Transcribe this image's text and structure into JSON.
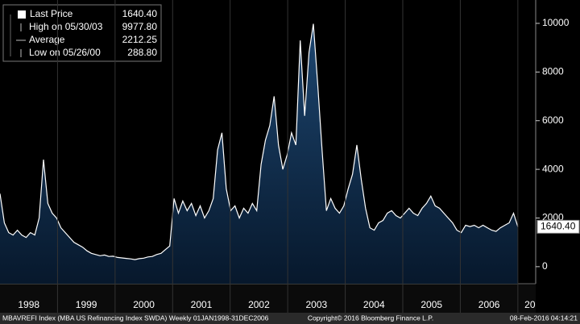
{
  "chart_data": {
    "type": "area",
    "stats": [
      {
        "label": "Last Price",
        "value": "1640.40"
      },
      {
        "label": "High on 05/30/03",
        "value": "9977.80"
      },
      {
        "label": "Average",
        "value": "2212.25"
      },
      {
        "label": "Low on 05/26/00",
        "value": "288.80"
      }
    ],
    "series": [
      {
        "name": "MBAVREFI Index",
        "color": "#ffffff",
        "fill": "#0d2b4c",
        "values": [
          3000,
          1800,
          1400,
          1300,
          1500,
          1300,
          1200,
          1400,
          1300,
          2000,
          4400,
          2600,
          2200,
          2000,
          1600,
          1400,
          1200,
          1000,
          900,
          800,
          650,
          550,
          500,
          450,
          480,
          420,
          430,
          380,
          360,
          340,
          320,
          289,
          330,
          350,
          400,
          420,
          500,
          550,
          700,
          850,
          2800,
          2200,
          2700,
          2300,
          2600,
          2100,
          2500,
          2000,
          2300,
          2800,
          4800,
          5500,
          3200,
          2300,
          2500,
          2000,
          2400,
          2200,
          2600,
          2300,
          4200,
          5200,
          5800,
          7000,
          5000,
          4000,
          4600,
          5500,
          5000,
          9300,
          6200,
          8800,
          9978,
          7500,
          4800,
          2300,
          2800,
          2400,
          2200,
          2500,
          3200,
          3800,
          5000,
          3600,
          2400,
          1600,
          1500,
          1800,
          1900,
          2200,
          2300,
          2100,
          2000,
          2200,
          2400,
          2200,
          2100,
          2400,
          2600,
          2900,
          2500,
          2400,
          2200,
          2000,
          1800,
          1500,
          1400,
          1700,
          1650,
          1700,
          1600,
          1700,
          1600,
          1500,
          1450,
          1600,
          1700,
          1800,
          2200,
          1640
        ]
      }
    ],
    "xlim": [
      1998,
      2007.31
    ],
    "xticks": [
      1998,
      1999,
      2000,
      2001,
      2002,
      2003,
      2004,
      2005,
      2006,
      {
        "value": 2007,
        "label": "20"
      }
    ],
    "ylim": [
      -700,
      10960
    ],
    "yticks": [
      0,
      2000,
      4000,
      6000,
      8000,
      10000
    ],
    "footer": [
      "MBAVREFI Index (MBA US Refinancing Index SWDA)  Weekly 01JAN1998-31DEC2006",
      "Copyright© 2016 Bloomberg Finance L.P.",
      "08-Feb-2016 04:14:21"
    ]
  }
}
